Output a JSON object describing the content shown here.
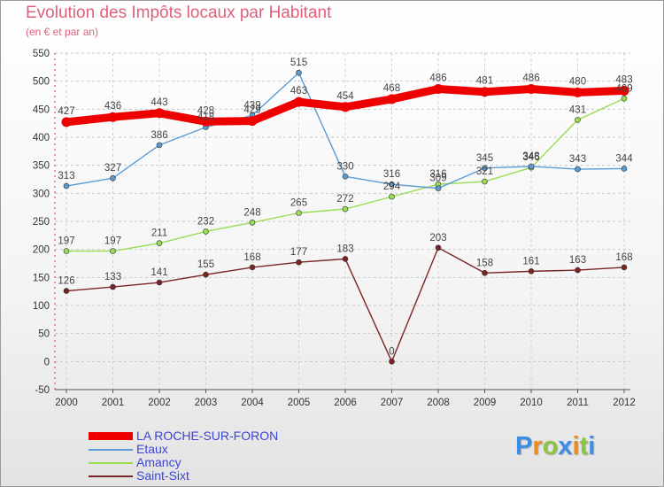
{
  "header": {
    "title": "Evolution des Impôts locaux par Habitant",
    "subtitle": "(en € et par an)"
  },
  "chart_data": {
    "type": "line",
    "title": "Evolution des Impôts locaux par Habitant",
    "subtitle": "(en € et par an)",
    "xlabel": "",
    "ylabel": "",
    "ylim": [
      -50,
      550
    ],
    "yticks": [
      -50,
      0,
      50,
      100,
      150,
      200,
      250,
      300,
      350,
      400,
      450,
      500,
      550
    ],
    "grid": true,
    "legend_position": "bottom-left",
    "categories": [
      "2000",
      "2001",
      "2002",
      "2003",
      "2004",
      "2005",
      "2006",
      "2007",
      "2008",
      "2009",
      "2010",
      "2011",
      "2012"
    ],
    "series": [
      {
        "name": "LA ROCHE-SUR-FORON",
        "color": "#ee0000",
        "values": [
          427,
          436,
          443,
          428,
          429,
          463,
          454,
          468,
          486,
          481,
          486,
          480,
          483
        ]
      },
      {
        "name": "Etaux",
        "color": "#5a9bd4",
        "values": [
          313,
          327,
          386,
          418,
          439,
          515,
          330,
          316,
          309,
          345,
          348,
          343,
          344
        ]
      },
      {
        "name": "Amancy",
        "color": "#99dd55",
        "values": [
          197,
          197,
          211,
          232,
          248,
          265,
          272,
          294,
          316,
          321,
          346,
          431,
          469
        ]
      },
      {
        "name": "Saint-Sixt",
        "color": "#7a2424",
        "values": [
          126,
          133,
          141,
          155,
          168,
          177,
          183,
          0,
          203,
          158,
          161,
          163,
          168
        ]
      }
    ]
  },
  "logo": {
    "letters": [
      "P",
      "r",
      "o",
      "x",
      "i",
      "t",
      "i"
    ],
    "colors": [
      "#3a8ee6",
      "#f08a1c",
      "#8cc63f",
      "#3a8ee6",
      "#f08a1c",
      "#8cc63f",
      "#3a8ee6"
    ]
  }
}
